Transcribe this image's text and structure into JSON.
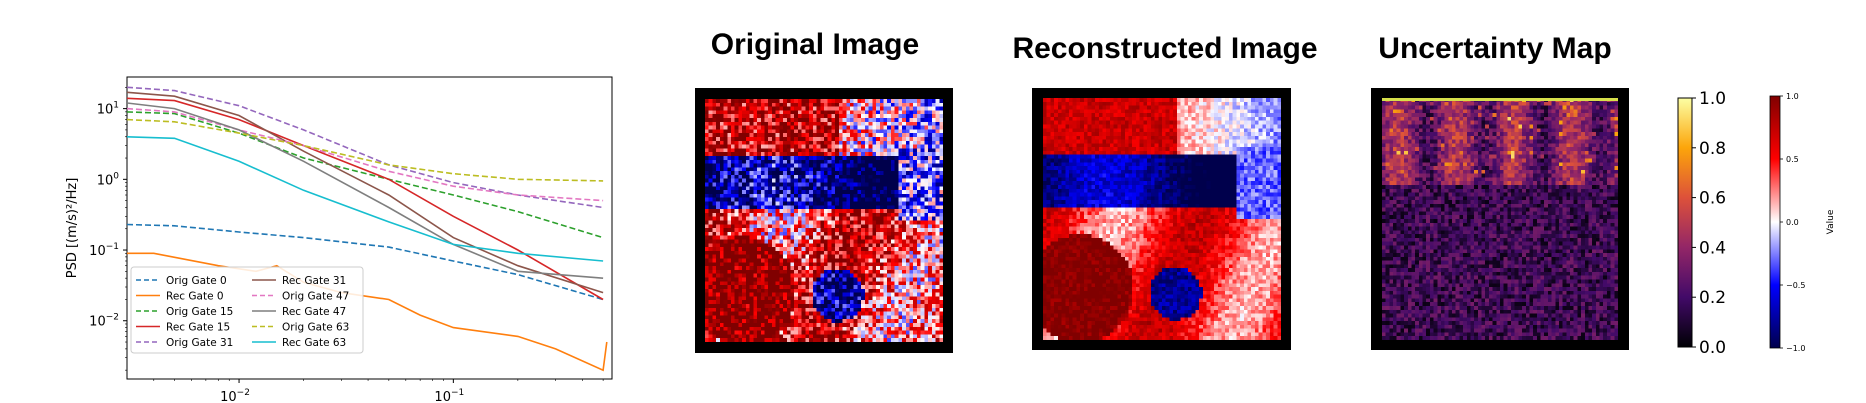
{
  "psd": {
    "ylabel": "PSD [(m/s)²/Hz]",
    "x_ticks": [
      {
        "value": 0.01,
        "base": "10",
        "exp": "−2"
      },
      {
        "value": 0.1,
        "base": "10",
        "exp": "−1"
      }
    ],
    "y_ticks": [
      {
        "value": 10,
        "base": "10",
        "exp": "1"
      },
      {
        "value": 1,
        "base": "10",
        "exp": "0"
      },
      {
        "value": 0.1,
        "base": "10",
        "exp": "−1"
      },
      {
        "value": 0.01,
        "base": "10",
        "exp": "−2"
      }
    ]
  },
  "chart_data": [
    {
      "type": "line",
      "title": "",
      "xlabel": "",
      "ylabel": "PSD [(m/s)²/Hz]",
      "x_scale": "log",
      "y_scale": "log",
      "xlim": [
        0.003,
        0.55
      ],
      "ylim": [
        0.0015,
        28
      ],
      "grid": false,
      "legend_position": "lower-left",
      "series": [
        {
          "name": "Orig Gate 0",
          "color": "#1f77b4",
          "style": "dashed",
          "x": [
            0.003,
            0.005,
            0.01,
            0.02,
            0.05,
            0.1,
            0.2,
            0.5
          ],
          "y": [
            0.23,
            0.22,
            0.18,
            0.15,
            0.11,
            0.07,
            0.045,
            0.02
          ]
        },
        {
          "name": "Rec  Gate 0",
          "color": "#ff7f0e",
          "style": "solid",
          "x": [
            0.003,
            0.004,
            0.008,
            0.012,
            0.015,
            0.02,
            0.03,
            0.05,
            0.07,
            0.1,
            0.2,
            0.3,
            0.5,
            0.52
          ],
          "y": [
            0.09,
            0.09,
            0.06,
            0.05,
            0.06,
            0.035,
            0.025,
            0.02,
            0.012,
            0.008,
            0.006,
            0.004,
            0.002,
            0.005
          ]
        },
        {
          "name": "Orig Gate 15",
          "color": "#2ca02c",
          "style": "dashed",
          "x": [
            0.003,
            0.005,
            0.01,
            0.02,
            0.05,
            0.1,
            0.2,
            0.5
          ],
          "y": [
            9,
            8.5,
            4.5,
            2.0,
            1.0,
            0.6,
            0.35,
            0.15
          ]
        },
        {
          "name": "Rec  Gate 15",
          "color": "#d62728",
          "style": "solid",
          "x": [
            0.003,
            0.005,
            0.01,
            0.02,
            0.05,
            0.1,
            0.2,
            0.5
          ],
          "y": [
            14,
            13,
            7,
            3,
            1.0,
            0.3,
            0.1,
            0.02
          ]
        },
        {
          "name": "Orig Gate 31",
          "color": "#9467bd",
          "style": "dashed",
          "x": [
            0.003,
            0.005,
            0.01,
            0.02,
            0.05,
            0.1,
            0.2,
            0.5
          ],
          "y": [
            20,
            18,
            11,
            5,
            1.6,
            0.9,
            0.6,
            0.4
          ]
        },
        {
          "name": "Rec  Gate 31",
          "color": "#8c564b",
          "style": "solid",
          "x": [
            0.003,
            0.005,
            0.01,
            0.02,
            0.05,
            0.1,
            0.2,
            0.5
          ],
          "y": [
            17,
            15,
            8,
            2.5,
            0.6,
            0.15,
            0.06,
            0.025
          ]
        },
        {
          "name": "Orig Gate 47",
          "color": "#e377c2",
          "style": "dashed",
          "x": [
            0.003,
            0.005,
            0.01,
            0.02,
            0.05,
            0.1,
            0.2,
            0.5
          ],
          "y": [
            10,
            9,
            5,
            3,
            1.3,
            0.8,
            0.6,
            0.5
          ]
        },
        {
          "name": "Rec  Gate 47",
          "color": "#7f7f7f",
          "style": "solid",
          "x": [
            0.003,
            0.005,
            0.01,
            0.02,
            0.05,
            0.1,
            0.2,
            0.5
          ],
          "y": [
            12,
            10,
            5,
            1.8,
            0.4,
            0.12,
            0.05,
            0.04
          ]
        },
        {
          "name": "Orig Gate 63",
          "color": "#bcbd22",
          "style": "dashed",
          "x": [
            0.003,
            0.005,
            0.01,
            0.02,
            0.05,
            0.1,
            0.2,
            0.5
          ],
          "y": [
            7,
            6.5,
            4.5,
            3,
            1.6,
            1.2,
            1.0,
            0.95
          ]
        },
        {
          "name": "Rec  Gate 63",
          "color": "#17becf",
          "style": "solid",
          "x": [
            0.003,
            0.005,
            0.01,
            0.02,
            0.05,
            0.1,
            0.2,
            0.5
          ],
          "y": [
            4,
            3.8,
            1.8,
            0.7,
            0.25,
            0.12,
            0.09,
            0.07
          ]
        }
      ]
    },
    {
      "type": "heatmap",
      "title": "Original Image",
      "colormap": "seismic",
      "vmin": -1.0,
      "vmax": 1.0
    },
    {
      "type": "heatmap",
      "title": "Reconstructed Image",
      "colormap": "seismic",
      "vmin": -1.0,
      "vmax": 1.0
    },
    {
      "type": "heatmap",
      "title": "Uncertainty Map",
      "colormap": "inferno",
      "vmin": 0.0,
      "vmax": 1.0
    }
  ],
  "titles": {
    "original": "Original Image",
    "reconstructed": "Reconstructed Image",
    "uncertainty": "Uncertainty Map"
  },
  "colorbar_uncertainty": {
    "ticks": [
      "1.0",
      "0.8",
      "0.6",
      "0.4",
      "0.2",
      "0.0"
    ]
  },
  "colorbar_value": {
    "ticks": [
      "1.0",
      "0.5",
      "0.0",
      "−0.5",
      "−1.0"
    ],
    "label": "Value"
  },
  "colors": {
    "seismic": [
      "#00004c",
      "#0000ff",
      "#ffffff",
      "#ff0000",
      "#800000"
    ],
    "inferno": [
      "#000004",
      "#420a68",
      "#932667",
      "#dd513a",
      "#fca50a",
      "#fcffa4"
    ]
  }
}
